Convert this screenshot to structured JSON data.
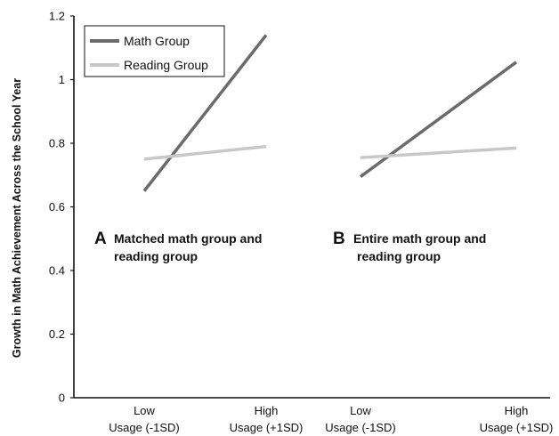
{
  "chart_data": {
    "type": "line",
    "ylabel": "Growth in Math Achievement Across the School Year",
    "ylim": [
      0,
      1.2
    ],
    "yticks": [
      "0",
      "0.2",
      "0.4",
      "0.6",
      "0.8",
      "1",
      "1.2"
    ],
    "ytick_values": [
      0,
      0.2,
      0.4,
      0.6,
      0.8,
      1.0,
      1.2
    ],
    "legend": {
      "placement": "top-left",
      "entries": [
        {
          "name": "Math Group",
          "color": "#6b6b6b"
        },
        {
          "name": "Reading Group",
          "color": "#c8c8c8"
        }
      ]
    },
    "panels": [
      {
        "letter": "A",
        "title_line1": "Matched math group and",
        "title_line2": "reading group",
        "categories": [
          {
            "line1": "Low",
            "line2": "Usage (-1SD)"
          },
          {
            "line1": "High",
            "line2": "Usage (+1SD)"
          }
        ],
        "series": [
          {
            "name": "Math Group",
            "values": [
              0.65,
              1.14
            ]
          },
          {
            "name": "Reading Group",
            "values": [
              0.75,
              0.79
            ]
          }
        ]
      },
      {
        "letter": "B",
        "title_line1": "Entire math group and",
        "title_line2": "reading group",
        "categories": [
          {
            "line1": "Low",
            "line2": "Usage (-1SD)"
          },
          {
            "line1": "High",
            "line2": "Usage (+1SD)"
          }
        ],
        "series": [
          {
            "name": "Math Group",
            "values": [
              0.695,
              1.055
            ]
          },
          {
            "name": "Reading Group",
            "values": [
              0.755,
              0.785
            ]
          }
        ]
      }
    ]
  }
}
